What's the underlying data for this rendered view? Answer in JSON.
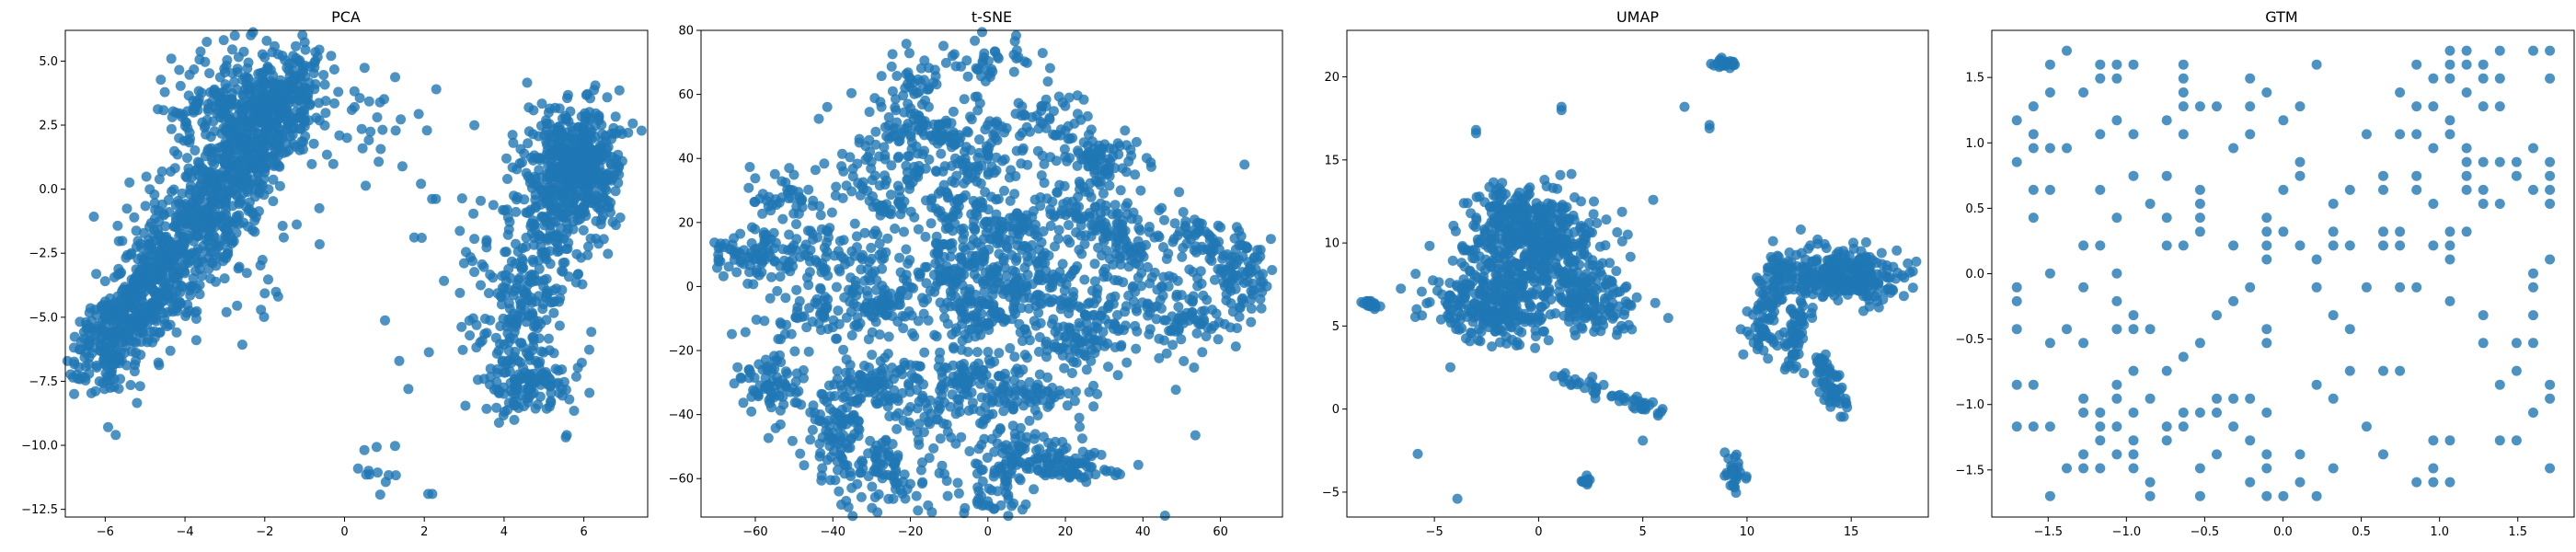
{
  "figure": {
    "accent_color": "#1f77b4"
  },
  "chart_data": [
    {
      "type": "scatter",
      "title": "PCA",
      "xlabel": "",
      "ylabel": "",
      "xlim": [
        -7.0,
        7.6
      ],
      "ylim": [
        -12.8,
        6.2
      ],
      "xticks": [
        -6,
        -4,
        -2,
        0,
        2,
        4,
        6
      ],
      "yticks": [
        -12.5,
        -10.0,
        -7.5,
        -5.0,
        -2.5,
        0.0,
        2.5,
        5.0
      ],
      "ytick_labels": [
        "−12.5",
        "−10.0",
        "−7.5",
        "−5.0",
        "−2.5",
        "0.0",
        "2.5",
        "5.0"
      ],
      "xtick_labels": [
        "−6",
        "−4",
        "−2",
        "0",
        "2",
        "4",
        "6"
      ],
      "grid": false,
      "points_summary": "two dense clusters: elongated diagonal band from (-6.5,-7) to (-1,5) and a right cluster centered near (5.5,0) extending down to (4,-9); sparse outliers near (1,-11) and (2,-12)"
    },
    {
      "type": "scatter",
      "title": "t-SNE",
      "xlabel": "",
      "ylabel": "",
      "xlim": [
        -74,
        76
      ],
      "ylim": [
        -72,
        80
      ],
      "xticks": [
        -60,
        -40,
        -20,
        0,
        20,
        40,
        60
      ],
      "yticks": [
        -60,
        -40,
        -20,
        0,
        20,
        40,
        60,
        80
      ],
      "xtick_labels": [
        "−60",
        "−40",
        "−20",
        "0",
        "20",
        "40",
        "60"
      ],
      "ytick_labels": [
        "−60",
        "−40",
        "−20",
        "0",
        "20",
        "40",
        "60",
        "80"
      ],
      "grid": false,
      "points_summary": "many small clumped clusters spread across the plane, roughly circular cloud spanning x in [-65,70], y in [-70,72]"
    },
    {
      "type": "scatter",
      "title": "UMAP",
      "xlabel": "",
      "ylabel": "",
      "xlim": [
        -9.2,
        18.7
      ],
      "ylim": [
        -6.5,
        22.8
      ],
      "xticks": [
        -5,
        0,
        5,
        10,
        15
      ],
      "yticks": [
        -5,
        0,
        5,
        10,
        15,
        20
      ],
      "xtick_labels": [
        "−5",
        "0",
        "5",
        "10",
        "15"
      ],
      "ytick_labels": [
        "−5",
        "0",
        "5",
        "10",
        "15",
        "20"
      ],
      "grid": false,
      "points_summary": "large left blob centered near (0,8), right blob near (14,7) with tendrils, filament from (1,2) to (6,0), small isolated clumps"
    },
    {
      "type": "scatter",
      "title": "GTM",
      "xlabel": "",
      "ylabel": "",
      "xlim": [
        -1.86,
        1.86
      ],
      "ylim": [
        -1.86,
        1.86
      ],
      "xticks": [
        -1.5,
        -1.0,
        -0.5,
        0.0,
        0.5,
        1.0,
        1.5
      ],
      "yticks": [
        -1.5,
        -1.0,
        -0.5,
        0.0,
        0.5,
        1.0,
        1.5
      ],
      "xtick_labels": [
        "−1.5",
        "−1.0",
        "−0.5",
        "0.0",
        "0.5",
        "1.0",
        "1.5"
      ],
      "ytick_labels": [
        "−1.5",
        "−1.0",
        "−0.5",
        "0.0",
        "0.5",
        "1.0",
        "1.5"
      ],
      "grid": false,
      "points_summary": "points snapped to a regular grid with spacing ~0.1 spanning [-1.7,1.7] in both axes, irregular occupancy"
    }
  ]
}
